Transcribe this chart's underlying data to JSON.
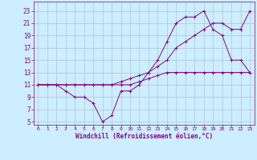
{
  "xlabel": "Windchill (Refroidissement éolien,°C)",
  "bg_color": "#cceeff",
  "line_color": "#880088",
  "grid_color": "#aabbcc",
  "xlim": [
    -0.5,
    23.5
  ],
  "ylim": [
    4.5,
    24.5
  ],
  "yticks": [
    5,
    7,
    9,
    11,
    13,
    15,
    17,
    19,
    21,
    23
  ],
  "xticks": [
    0,
    1,
    2,
    3,
    4,
    5,
    6,
    7,
    8,
    9,
    10,
    11,
    12,
    13,
    14,
    15,
    16,
    17,
    18,
    19,
    20,
    21,
    22,
    23
  ],
  "series1_x": [
    0,
    1,
    2,
    3,
    4,
    5,
    6,
    7,
    8,
    9,
    10,
    11,
    12,
    13,
    14,
    15,
    16,
    17,
    18,
    19,
    20,
    21,
    22,
    23
  ],
  "series1_y": [
    11,
    11,
    11,
    10,
    9,
    9,
    8,
    5,
    6,
    10,
    10,
    11,
    13,
    15,
    18,
    21,
    22,
    22,
    23,
    20,
    19,
    15,
    15,
    13
  ],
  "series2_x": [
    0,
    1,
    2,
    3,
    4,
    5,
    6,
    7,
    8,
    9,
    10,
    11,
    12,
    13,
    14,
    15,
    16,
    17,
    18,
    19,
    20,
    21,
    22,
    23
  ],
  "series2_y": [
    11,
    11,
    11,
    11,
    11,
    11,
    11,
    11,
    11,
    11.5,
    12,
    12.5,
    13,
    14,
    15,
    17,
    18,
    19,
    20,
    21,
    21,
    20,
    20,
    23
  ],
  "series3_x": [
    0,
    1,
    2,
    3,
    4,
    5,
    6,
    7,
    8,
    9,
    10,
    11,
    12,
    13,
    14,
    15,
    16,
    17,
    18,
    19,
    20,
    21,
    22,
    23
  ],
  "series3_y": [
    11,
    11,
    11,
    11,
    11,
    11,
    11,
    11,
    11,
    11,
    11,
    11.5,
    12,
    12.5,
    13,
    13,
    13,
    13,
    13,
    13,
    13,
    13,
    13,
    13
  ]
}
